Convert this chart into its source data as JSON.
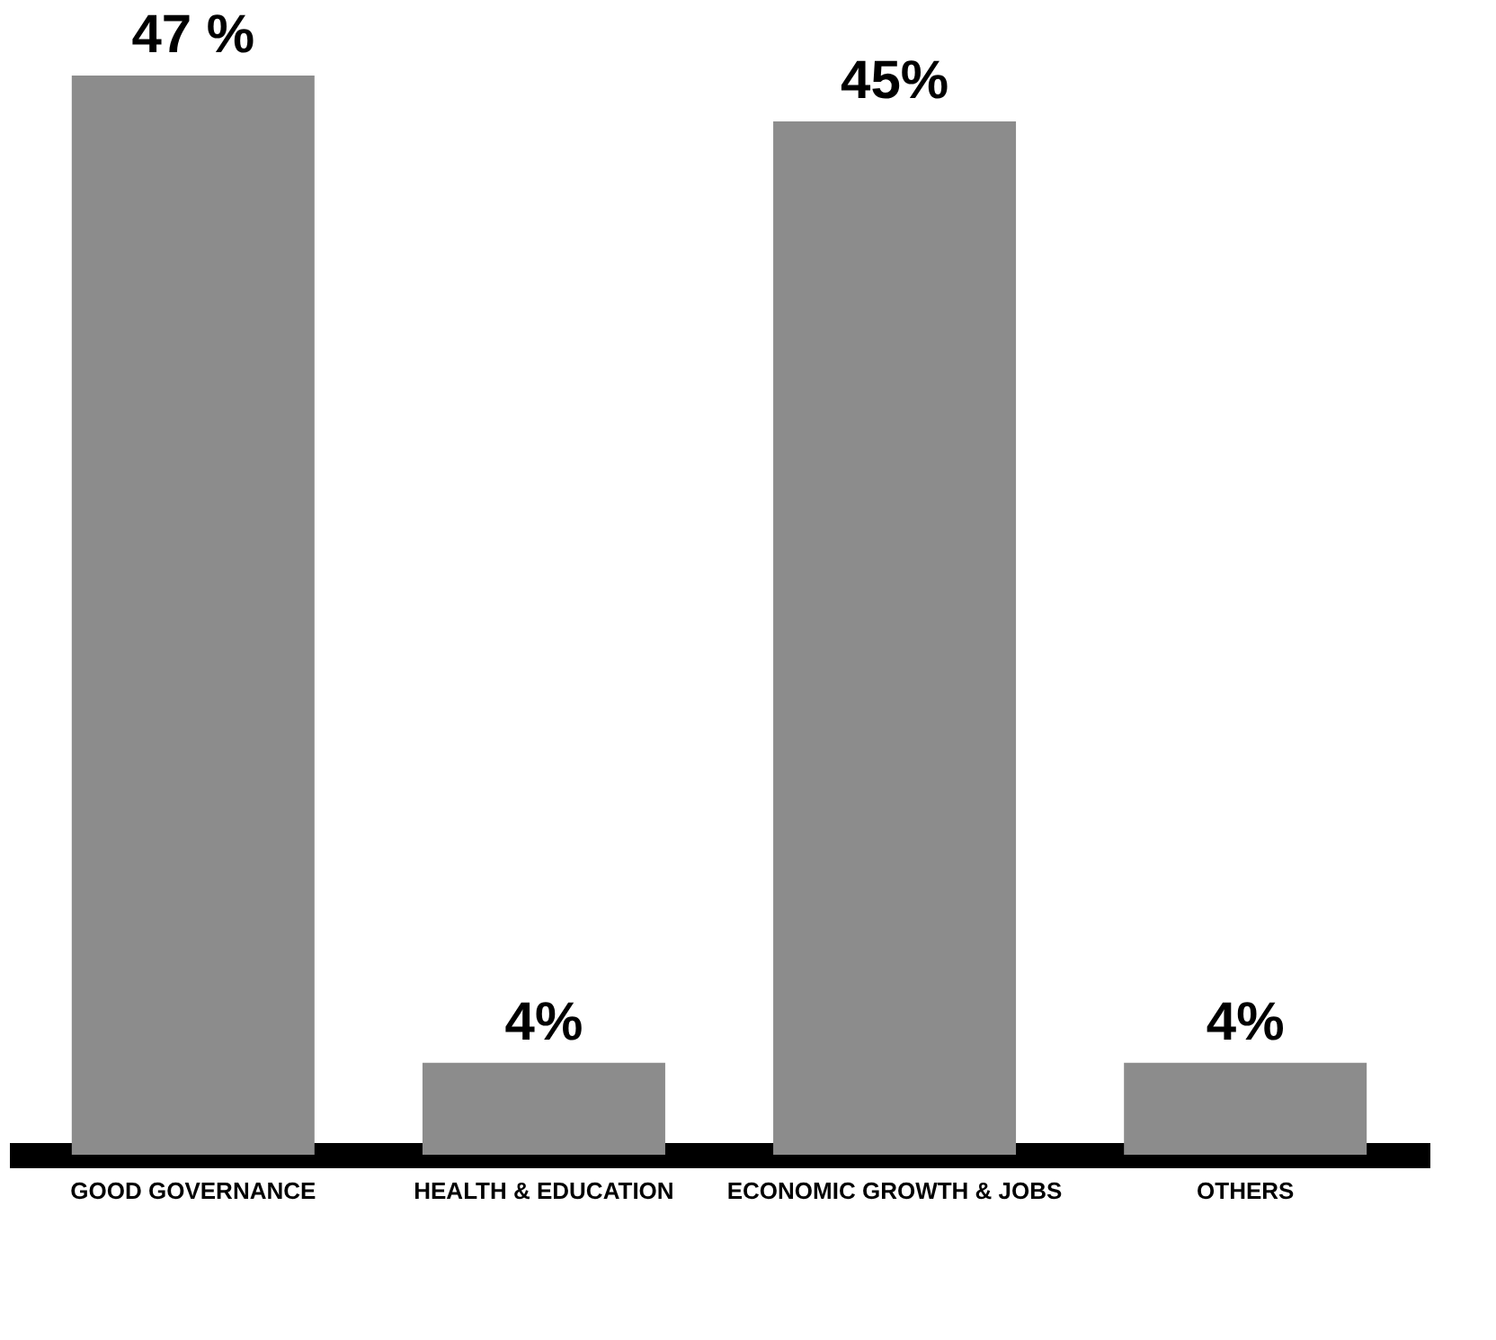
{
  "chart_data": {
    "type": "bar",
    "categories": [
      "GOOD GOVERNANCE",
      "HEALTH & EDUCATION",
      "ECONOMIC GROWTH & JOBS",
      "OTHERS"
    ],
    "values": [
      47,
      4,
      45,
      4
    ],
    "value_labels": [
      "47 %",
      "4%",
      "45%",
      "4%"
    ],
    "color": "#8c8c8c"
  }
}
